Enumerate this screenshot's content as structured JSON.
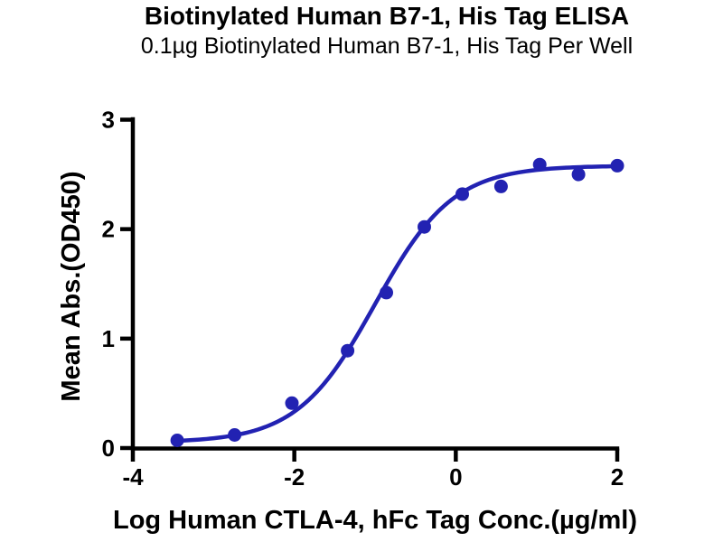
{
  "page": {
    "background": "#ffffff",
    "text_color": "#000000"
  },
  "chart_data": {
    "type": "scatter",
    "title": "Biotinylated Human B7-1, His Tag ELISA",
    "subtitle": "0.1µg Biotinylated Human B7-1, His Tag Per Well",
    "xlabel": "Log Human CTLA-4, hFc Tag Conc.(µg/ml)",
    "ylabel": "Mean Abs.(OD450)",
    "xlim": [
      -4,
      2
    ],
    "ylim": [
      0,
      3
    ],
    "x_ticks": [
      "-4",
      "-2",
      "0",
      "2"
    ],
    "x_tick_values": [
      -4,
      -2,
      0,
      2
    ],
    "y_ticks": [
      "0",
      "1",
      "2",
      "3"
    ],
    "y_tick_values": [
      0,
      1,
      2,
      3
    ],
    "grid": false,
    "legend": "none",
    "x": [
      -3.45,
      -2.74,
      -2.03,
      -1.34,
      -0.86,
      -0.39,
      0.08,
      0.56,
      1.04,
      1.52,
      2.0
    ],
    "y": [
      0.07,
      0.12,
      0.41,
      0.89,
      1.42,
      2.02,
      2.32,
      2.39,
      2.59,
      2.5,
      2.58
    ],
    "fit_curve": {
      "model": "4PL",
      "bottom": 0.05,
      "top": 2.58,
      "log_ec50": -1.0,
      "hill_slope": 0.9,
      "x_start": -3.45,
      "x_end": 2.0
    },
    "colors": {
      "points": "#2222b2",
      "curve": "#2222b2",
      "axis": "#000000",
      "text": "#000000"
    }
  }
}
